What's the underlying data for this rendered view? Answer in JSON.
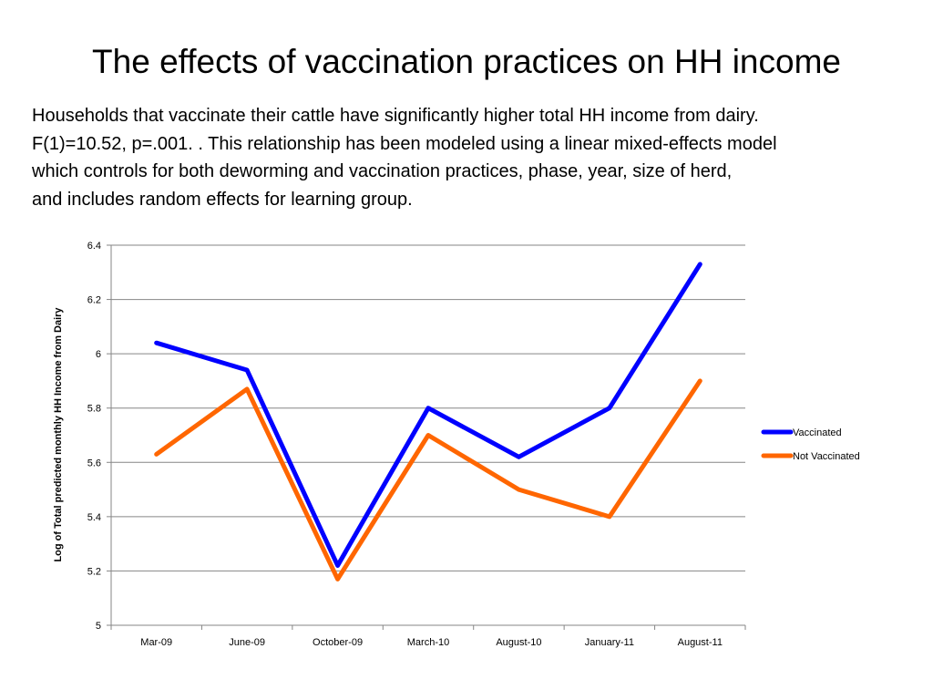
{
  "slide": {
    "title": "The effects of vaccination practices on HH income",
    "body_lines": [
      "Households that vaccinate their cattle have significantly higher total HH income from dairy.",
      "F(1)=10.52, p=.001. .  This relationship has been modeled using a linear mixed-effects model",
      "which controls for both deworming and vaccination practices, phase, year, size of herd,",
      "and includes random effects for learning group."
    ]
  },
  "chart_data": {
    "type": "line",
    "title": "",
    "xlabel": "",
    "ylabel": "Log of Total predicted monthly HH Income from Dairy",
    "categories": [
      "Mar-09",
      "June-09",
      "October-09",
      "March-10",
      "August-10",
      "January-11",
      "August-11"
    ],
    "ylim": [
      5,
      6.4
    ],
    "yticks": [
      "5",
      "5.2",
      "5.4",
      "5.6",
      "5.8",
      "6",
      "6.2",
      "6.4"
    ],
    "grid": true,
    "legend": "right",
    "series": [
      {
        "name": "Vaccinated",
        "color": "#0000ff",
        "values": [
          6.04,
          5.94,
          5.22,
          5.8,
          5.62,
          5.8,
          6.33
        ]
      },
      {
        "name": "Not Vaccinated",
        "color": "#ff6600",
        "values": [
          5.63,
          5.87,
          5.17,
          5.7,
          5.5,
          5.4,
          5.9
        ]
      }
    ]
  }
}
